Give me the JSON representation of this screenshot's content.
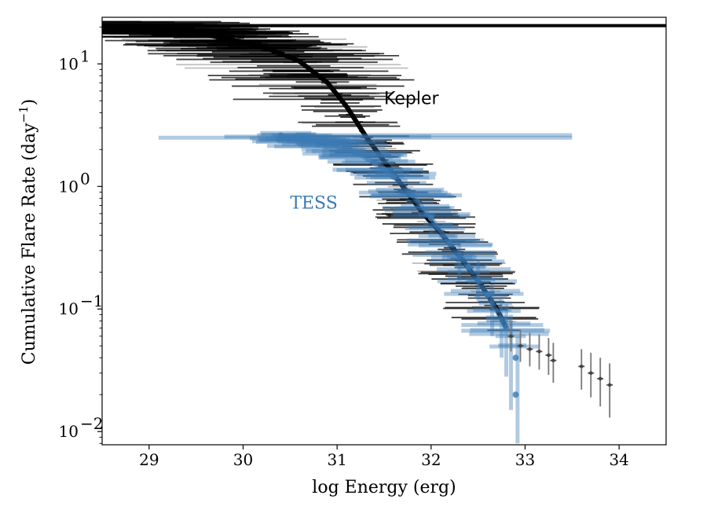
{
  "chart_data": {
    "type": "scatter",
    "xlabel": "log Energy (erg)",
    "ylabel": "Cumulative Flare Rate (day",
    "ylabel_sup": "−1",
    "ylabel_tail": ")",
    "xlim": [
      28.5,
      34.5
    ],
    "ylim": [
      0.0078,
      24
    ],
    "yscale": "log",
    "grid": false,
    "xticks": [
      29,
      30,
      31,
      32,
      33,
      34
    ],
    "xtick_labels": [
      "29",
      "30",
      "31",
      "32",
      "33",
      "34"
    ],
    "yticks": [
      {
        "value": 0.01,
        "base": "10",
        "exp": "−2"
      },
      {
        "value": 0.1,
        "base": "10",
        "exp": "−1"
      },
      {
        "value": 1,
        "base": "10",
        "exp": "0"
      },
      {
        "value": 10,
        "base": "10",
        "exp": "1"
      }
    ],
    "colors": {
      "kepler": "#000000",
      "tess": "#3b7ab3"
    },
    "annotations": [
      {
        "series": "Kepler",
        "text": "Kepler",
        "x": 31.5,
        "y": 5.3
      },
      {
        "series": "TESS",
        "text": "TESS",
        "x": 30.5,
        "y": 0.74
      }
    ],
    "series": [
      {
        "name": "Kepler",
        "points": [
          {
            "x": 28.5,
            "y": 20.5
          },
          {
            "x": 29.0,
            "y": 20.0
          },
          {
            "x": 29.5,
            "y": 18.0
          },
          {
            "x": 30.0,
            "y": 15.0
          },
          {
            "x": 30.3,
            "y": 13.0
          },
          {
            "x": 30.6,
            "y": 10.5
          },
          {
            "x": 30.9,
            "y": 7.0
          },
          {
            "x": 31.1,
            "y": 4.5
          },
          {
            "x": 31.3,
            "y": 2.6
          },
          {
            "x": 31.5,
            "y": 1.6
          },
          {
            "x": 31.7,
            "y": 1.0
          },
          {
            "x": 31.9,
            "y": 0.62
          },
          {
            "x": 32.1,
            "y": 0.42
          },
          {
            "x": 32.3,
            "y": 0.27
          },
          {
            "x": 32.5,
            "y": 0.17
          },
          {
            "x": 32.7,
            "y": 0.1
          },
          {
            "x": 32.8,
            "y": 0.07
          }
        ],
        "sparse_points": [
          {
            "x": 32.85,
            "y": 0.06,
            "lo": 0.045,
            "hi": 0.08
          },
          {
            "x": 32.95,
            "y": 0.05,
            "lo": 0.037,
            "hi": 0.068
          },
          {
            "x": 33.05,
            "y": 0.047,
            "lo": 0.034,
            "hi": 0.064
          },
          {
            "x": 33.15,
            "y": 0.045,
            "lo": 0.032,
            "hi": 0.062
          },
          {
            "x": 33.25,
            "y": 0.042,
            "lo": 0.029,
            "hi": 0.058
          },
          {
            "x": 33.3,
            "y": 0.038,
            "lo": 0.025,
            "hi": 0.053
          },
          {
            "x": 33.6,
            "y": 0.034,
            "lo": 0.022,
            "hi": 0.047
          },
          {
            "x": 33.7,
            "y": 0.03,
            "lo": 0.019,
            "hi": 0.044
          },
          {
            "x": 33.8,
            "y": 0.027,
            "lo": 0.016,
            "hi": 0.04
          },
          {
            "x": 33.9,
            "y": 0.024,
            "lo": 0.013,
            "hi": 0.036
          }
        ]
      },
      {
        "name": "TESS",
        "points": [
          {
            "x": 30.4,
            "y": 2.6
          },
          {
            "x": 30.7,
            "y": 2.4
          },
          {
            "x": 31.0,
            "y": 2.2
          },
          {
            "x": 31.2,
            "y": 1.9
          },
          {
            "x": 31.4,
            "y": 1.55
          },
          {
            "x": 31.6,
            "y": 1.2
          },
          {
            "x": 31.8,
            "y": 0.85
          },
          {
            "x": 32.0,
            "y": 0.55
          },
          {
            "x": 32.2,
            "y": 0.34
          },
          {
            "x": 32.4,
            "y": 0.22
          },
          {
            "x": 32.6,
            "y": 0.13
          },
          {
            "x": 32.8,
            "y": 0.07
          },
          {
            "x": 32.9,
            "y": 0.04
          },
          {
            "x": 32.9,
            "y": 0.02
          }
        ]
      }
    ]
  }
}
